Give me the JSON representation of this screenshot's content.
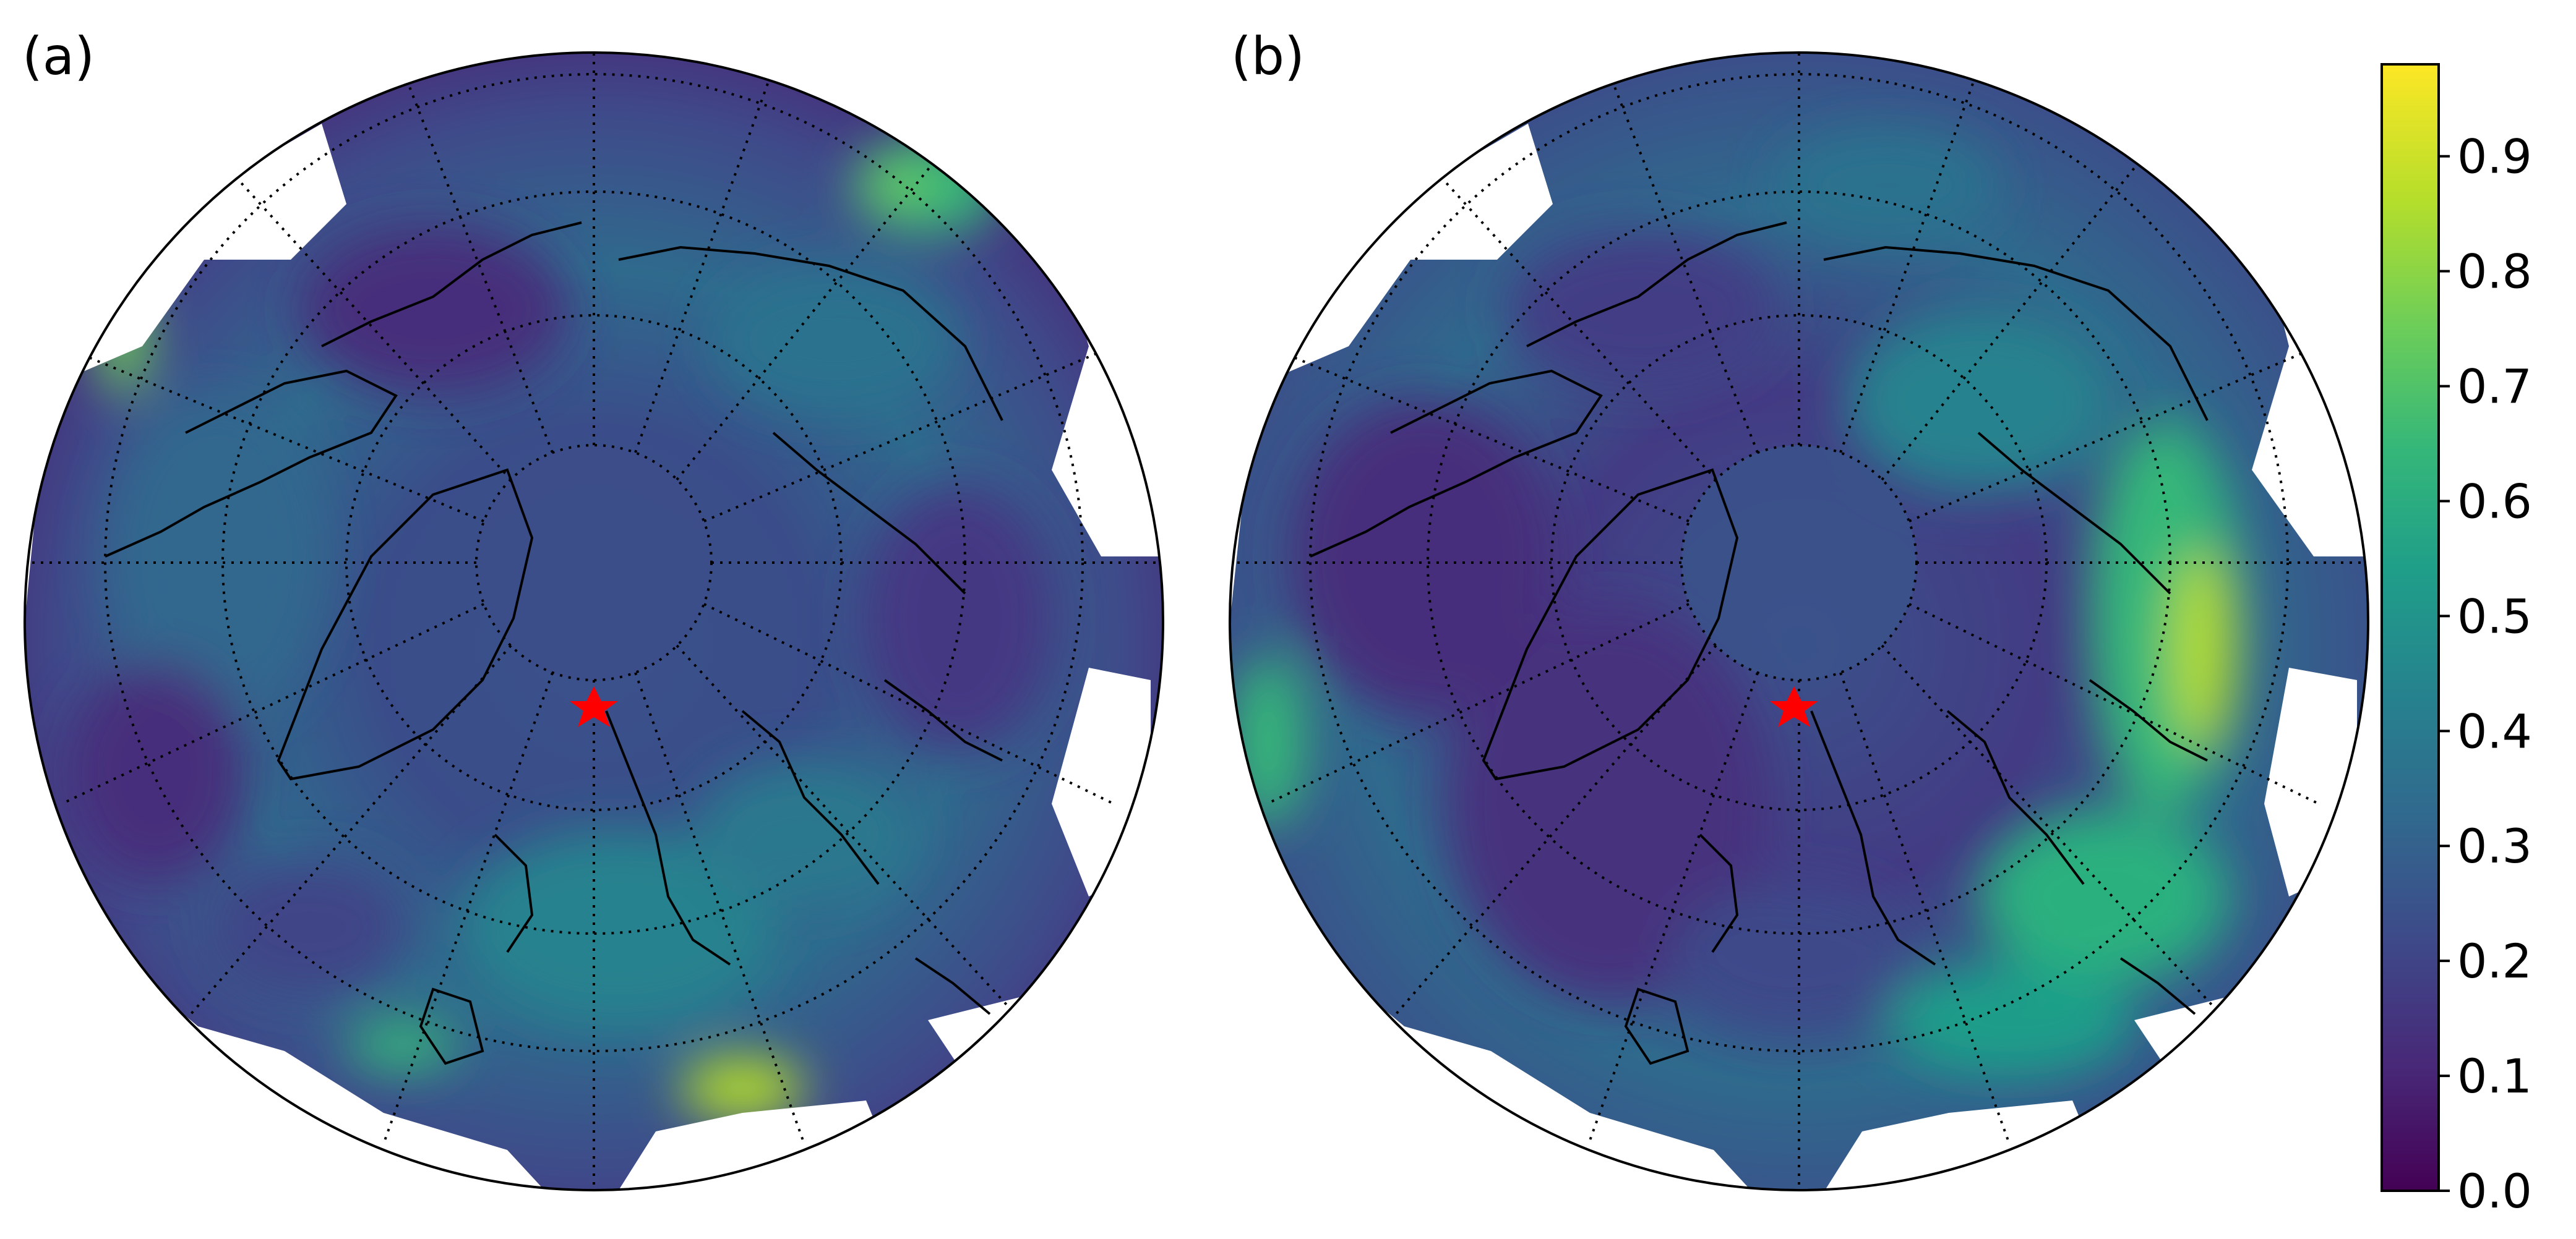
{
  "figure": {
    "panels": [
      {
        "label": "(a)",
        "marker": "red-star"
      },
      {
        "label": "(b)",
        "marker": "red-star"
      }
    ],
    "projection": "north-polar-stereographic",
    "graticule": "dotted"
  },
  "colorbar": {
    "colormap": "viridis",
    "range": [
      0.0,
      0.98
    ],
    "tick_labels": [
      "0.0",
      "0.1",
      "0.2",
      "0.3",
      "0.4",
      "0.5",
      "0.6",
      "0.7",
      "0.8",
      "0.9"
    ],
    "colors": [
      "#440154",
      "#482878",
      "#3e4989",
      "#31688e",
      "#26828e",
      "#1f9e89",
      "#35b779",
      "#6ece58",
      "#b5de2b",
      "#fde725"
    ]
  },
  "marker_color": "#ff0000"
}
